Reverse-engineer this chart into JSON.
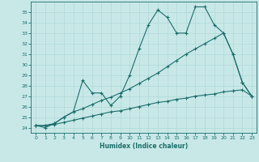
{
  "xlabel": "Humidex (Indice chaleur)",
  "bg_color": "#c8e8e8",
  "line_color": "#1a6e6a",
  "grid_color": "#b0d8d8",
  "ylim": [
    23.5,
    36.0
  ],
  "xlim": [
    -0.5,
    23.5
  ],
  "yticks": [
    24,
    25,
    26,
    27,
    28,
    29,
    30,
    31,
    32,
    33,
    34,
    35
  ],
  "xticks": [
    0,
    1,
    2,
    3,
    4,
    5,
    6,
    7,
    8,
    9,
    10,
    11,
    12,
    13,
    14,
    15,
    16,
    17,
    18,
    19,
    20,
    21,
    22,
    23
  ],
  "line1": [
    24.2,
    24.0,
    24.4,
    25.0,
    25.5,
    28.5,
    27.3,
    27.3,
    26.1,
    27.0,
    29.0,
    31.5,
    33.8,
    35.2,
    34.5,
    33.0,
    33.0,
    35.5,
    35.5,
    33.8,
    33.0,
    31.0,
    28.3,
    27.0
  ],
  "line2": [
    24.2,
    24.2,
    24.4,
    25.0,
    25.5,
    25.8,
    26.2,
    26.6,
    26.9,
    27.3,
    27.7,
    28.2,
    28.7,
    29.2,
    29.8,
    30.4,
    31.0,
    31.5,
    32.0,
    32.5,
    33.0,
    31.0,
    28.3,
    27.0
  ],
  "line3": [
    24.2,
    24.2,
    24.3,
    24.5,
    24.7,
    24.9,
    25.1,
    25.3,
    25.5,
    25.6,
    25.8,
    26.0,
    26.2,
    26.4,
    26.5,
    26.7,
    26.8,
    27.0,
    27.1,
    27.2,
    27.4,
    27.5,
    27.6,
    27.0
  ]
}
